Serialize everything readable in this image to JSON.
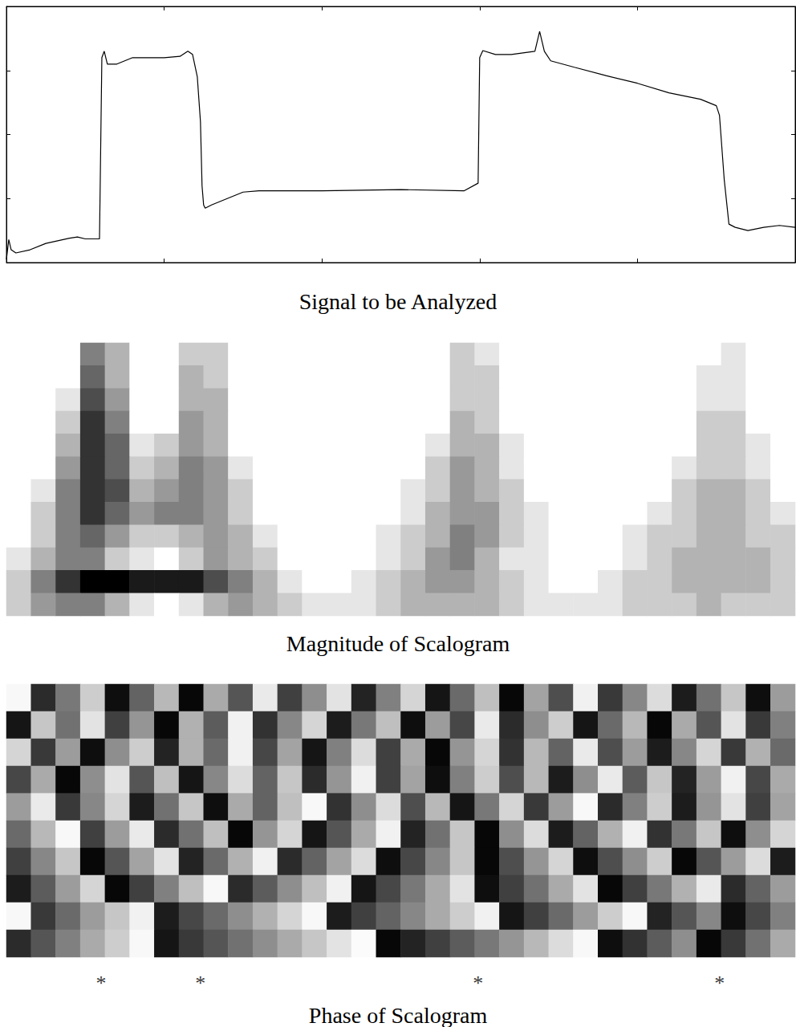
{
  "chart_data": [
    {
      "type": "line",
      "title": "Signal to be Analyzed",
      "x": [
        0,
        1.5,
        3,
        6,
        15,
        25,
        40,
        45,
        50,
        59,
        60.5,
        62,
        64,
        70,
        80,
        100,
        110,
        115,
        118,
        121,
        123,
        124,
        125,
        126,
        130,
        140,
        150,
        160,
        200,
        250,
        290,
        299,
        300,
        302,
        310,
        320,
        335,
        338,
        341,
        345,
        360,
        380,
        400,
        420,
        440,
        450,
        452,
        455,
        458,
        462,
        470,
        480,
        490,
        500
      ],
      "values": [
        0.05,
        0.36,
        0.2,
        0.15,
        0.2,
        0.3,
        0.38,
        0.4,
        0.37,
        0.37,
        3.2,
        3.3,
        3.1,
        3.1,
        3.2,
        3.2,
        3.22,
        3.3,
        3.25,
        2.9,
        2.2,
        1.2,
        0.9,
        0.85,
        0.9,
        1.0,
        1.1,
        1.12,
        1.12,
        1.14,
        1.12,
        1.24,
        3.2,
        3.31,
        3.25,
        3.25,
        3.3,
        3.61,
        3.3,
        3.15,
        3.05,
        2.92,
        2.8,
        2.65,
        2.55,
        2.45,
        2.3,
        1.3,
        0.6,
        0.55,
        0.5,
        0.55,
        0.58,
        0.55
      ],
      "color": "#000000",
      "xlim": [
        0,
        500
      ],
      "xticks": [
        0,
        100,
        200,
        300,
        400,
        500
      ],
      "ylim": [
        0,
        4
      ],
      "yticks": [
        0,
        1,
        2,
        3,
        4
      ],
      "grid": false,
      "tick_labels": false
    },
    {
      "type": "heatmap",
      "title": "Magnitude of Scalogram",
      "cells": [
        [
          0,
          0,
          0,
          5,
          3,
          0,
          0,
          2,
          2,
          0,
          0,
          0,
          0,
          0,
          0,
          0,
          0,
          0,
          2,
          1,
          0,
          0,
          0,
          0,
          0,
          0,
          0,
          0,
          0,
          1,
          0,
          0
        ],
        [
          0,
          0,
          0,
          6,
          3,
          0,
          0,
          3,
          2,
          0,
          0,
          0,
          0,
          0,
          0,
          0,
          0,
          0,
          2,
          2,
          0,
          0,
          0,
          0,
          0,
          0,
          0,
          0,
          1,
          1,
          0,
          0
        ],
        [
          0,
          0,
          1,
          7,
          4,
          0,
          0,
          3,
          3,
          0,
          0,
          0,
          0,
          0,
          0,
          0,
          0,
          0,
          2,
          2,
          0,
          0,
          0,
          0,
          0,
          0,
          0,
          0,
          1,
          1,
          0,
          0
        ],
        [
          0,
          0,
          2,
          8,
          5,
          0,
          0,
          4,
          3,
          0,
          0,
          0,
          0,
          0,
          0,
          0,
          0,
          0,
          3,
          2,
          0,
          0,
          0,
          0,
          0,
          0,
          0,
          0,
          2,
          2,
          0,
          0
        ],
        [
          0,
          0,
          3,
          8,
          6,
          1,
          2,
          4,
          3,
          0,
          0,
          0,
          0,
          0,
          0,
          0,
          0,
          1,
          3,
          3,
          1,
          0,
          0,
          0,
          0,
          0,
          0,
          0,
          2,
          2,
          1,
          0
        ],
        [
          0,
          0,
          4,
          8,
          6,
          2,
          3,
          5,
          4,
          1,
          0,
          0,
          0,
          0,
          0,
          0,
          0,
          2,
          4,
          3,
          1,
          0,
          0,
          0,
          0,
          0,
          0,
          1,
          2,
          2,
          1,
          0
        ],
        [
          0,
          1,
          5,
          8,
          7,
          3,
          4,
          5,
          4,
          2,
          0,
          0,
          0,
          0,
          0,
          0,
          1,
          2,
          4,
          3,
          2,
          0,
          0,
          0,
          0,
          0,
          0,
          2,
          3,
          3,
          2,
          0
        ],
        [
          0,
          2,
          5,
          8,
          6,
          4,
          5,
          5,
          4,
          2,
          0,
          0,
          0,
          0,
          0,
          0,
          1,
          3,
          4,
          4,
          2,
          1,
          0,
          0,
          0,
          0,
          1,
          2,
          3,
          3,
          2,
          1
        ],
        [
          0,
          2,
          5,
          6,
          4,
          2,
          2,
          3,
          4,
          3,
          1,
          0,
          0,
          0,
          0,
          1,
          2,
          3,
          5,
          4,
          2,
          1,
          0,
          0,
          0,
          1,
          2,
          2,
          3,
          3,
          2,
          2
        ],
        [
          1,
          3,
          5,
          5,
          2,
          1,
          0,
          2,
          4,
          3,
          2,
          0,
          0,
          0,
          0,
          1,
          2,
          4,
          5,
          3,
          1,
          1,
          0,
          0,
          0,
          1,
          2,
          3,
          3,
          3,
          3,
          2
        ],
        [
          2,
          5,
          8,
          10,
          10,
          9,
          9,
          9,
          7,
          5,
          3,
          1,
          0,
          0,
          1,
          2,
          3,
          4,
          4,
          3,
          2,
          1,
          0,
          0,
          1,
          2,
          2,
          3,
          3,
          3,
          3,
          2
        ],
        [
          2,
          4,
          5,
          5,
          3,
          1,
          0,
          1,
          3,
          4,
          3,
          2,
          1,
          1,
          1,
          2,
          3,
          3,
          3,
          3,
          2,
          1,
          1,
          1,
          1,
          2,
          2,
          2,
          3,
          2,
          2,
          2
        ]
      ],
      "zlim": [
        0,
        10
      ],
      "color": [
        "#ffffff",
        "#000000"
      ],
      "tick_labels": false
    },
    {
      "type": "heatmap",
      "title": "Phase of Scalogram",
      "cells": [
        [
          170,
          -120,
          -10,
          110,
          -160,
          -40,
          80,
          -170,
          60,
          -60,
          150,
          -90,
          20,
          140,
          -130,
          0,
          120,
          -150,
          -30,
          90,
          -170,
          50,
          -70,
          160,
          -100,
          10,
          130,
          -140,
          -20,
          100,
          -160,
          40
        ],
        [
          -150,
          100,
          -20,
          140,
          -90,
          30,
          -170,
          70,
          -50,
          160,
          -110,
          10,
          120,
          -140,
          -10,
          90,
          -160,
          40,
          -80,
          150,
          -120,
          20,
          110,
          -150,
          -30,
          80,
          -170,
          60,
          -60,
          140,
          -100,
          0
        ],
        [
          120,
          -100,
          40,
          -160,
          20,
          110,
          -130,
          70,
          -30,
          160,
          -80,
          50,
          -150,
          0,
          130,
          -90,
          60,
          -170,
          30,
          120,
          -110,
          80,
          -40,
          150,
          -70,
          40,
          -140,
          10,
          120,
          -100,
          70,
          -30
        ],
        [
          -80,
          60,
          -170,
          20,
          140,
          -60,
          90,
          -150,
          10,
          130,
          -40,
          100,
          -120,
          30,
          160,
          -90,
          50,
          -160,
          0,
          110,
          -70,
          80,
          -140,
          20,
          150,
          -50,
          100,
          -130,
          40,
          160,
          -80,
          60
        ],
        [
          40,
          150,
          -100,
          10,
          120,
          -140,
          -20,
          100,
          -160,
          60,
          -40,
          90,
          170,
          -110,
          20,
          130,
          -70,
          80,
          -150,
          -10,
          120,
          -100,
          40,
          170,
          -120,
          0,
          110,
          -140,
          30,
          140,
          -90,
          50
        ],
        [
          -30,
          80,
          170,
          -90,
          40,
          150,
          -120,
          -20,
          90,
          -170,
          30,
          120,
          -150,
          -60,
          60,
          160,
          -130,
          -20,
          100,
          -170,
          20,
          130,
          -140,
          -40,
          70,
          160,
          -110,
          -10,
          100,
          -160,
          20,
          120
        ],
        [
          -90,
          10,
          100,
          -170,
          -60,
          50,
          140,
          -130,
          -30,
          70,
          160,
          -120,
          -40,
          50,
          130,
          -160,
          -80,
          10,
          100,
          -170,
          -70,
          30,
          120,
          -160,
          -70,
          20,
          110,
          -170,
          -60,
          40,
          130,
          -140
        ],
        [
          -140,
          -50,
          40,
          120,
          -170,
          -90,
          0,
          90,
          170,
          -120,
          -50,
          20,
          90,
          160,
          -150,
          -80,
          -10,
          60,
          140,
          -160,
          -90,
          -20,
          60,
          140,
          -170,
          -90,
          -10,
          70,
          150,
          -120,
          -40,
          40
        ],
        [
          170,
          -100,
          -30,
          40,
          100,
          160,
          -140,
          -80,
          -30,
          20,
          70,
          120,
          170,
          -140,
          -90,
          -40,
          10,
          60,
          110,
          160,
          -150,
          -90,
          -30,
          40,
          110,
          170,
          -130,
          -60,
          10,
          -160,
          -80,
          0
        ],
        [
          -120,
          -60,
          0,
          60,
          110,
          170,
          -150,
          -100,
          -60,
          -20,
          20,
          60,
          100,
          140,
          175,
          -170,
          -130,
          -90,
          -50,
          -10,
          30,
          80,
          130,
          170,
          -160,
          -110,
          -50,
          20,
          -170,
          -100,
          -20,
          60
        ]
      ],
      "zlim": [
        -180,
        180
      ],
      "color": [
        "#000000",
        "#ffffff"
      ],
      "tick_labels": false,
      "xlim": [
        0,
        500
      ],
      "annotations": [
        {
          "x": 60,
          "text": "*"
        },
        {
          "x": 123,
          "text": "*"
        },
        {
          "x": 299,
          "text": "*"
        },
        {
          "x": 452,
          "text": "*"
        }
      ]
    }
  ]
}
